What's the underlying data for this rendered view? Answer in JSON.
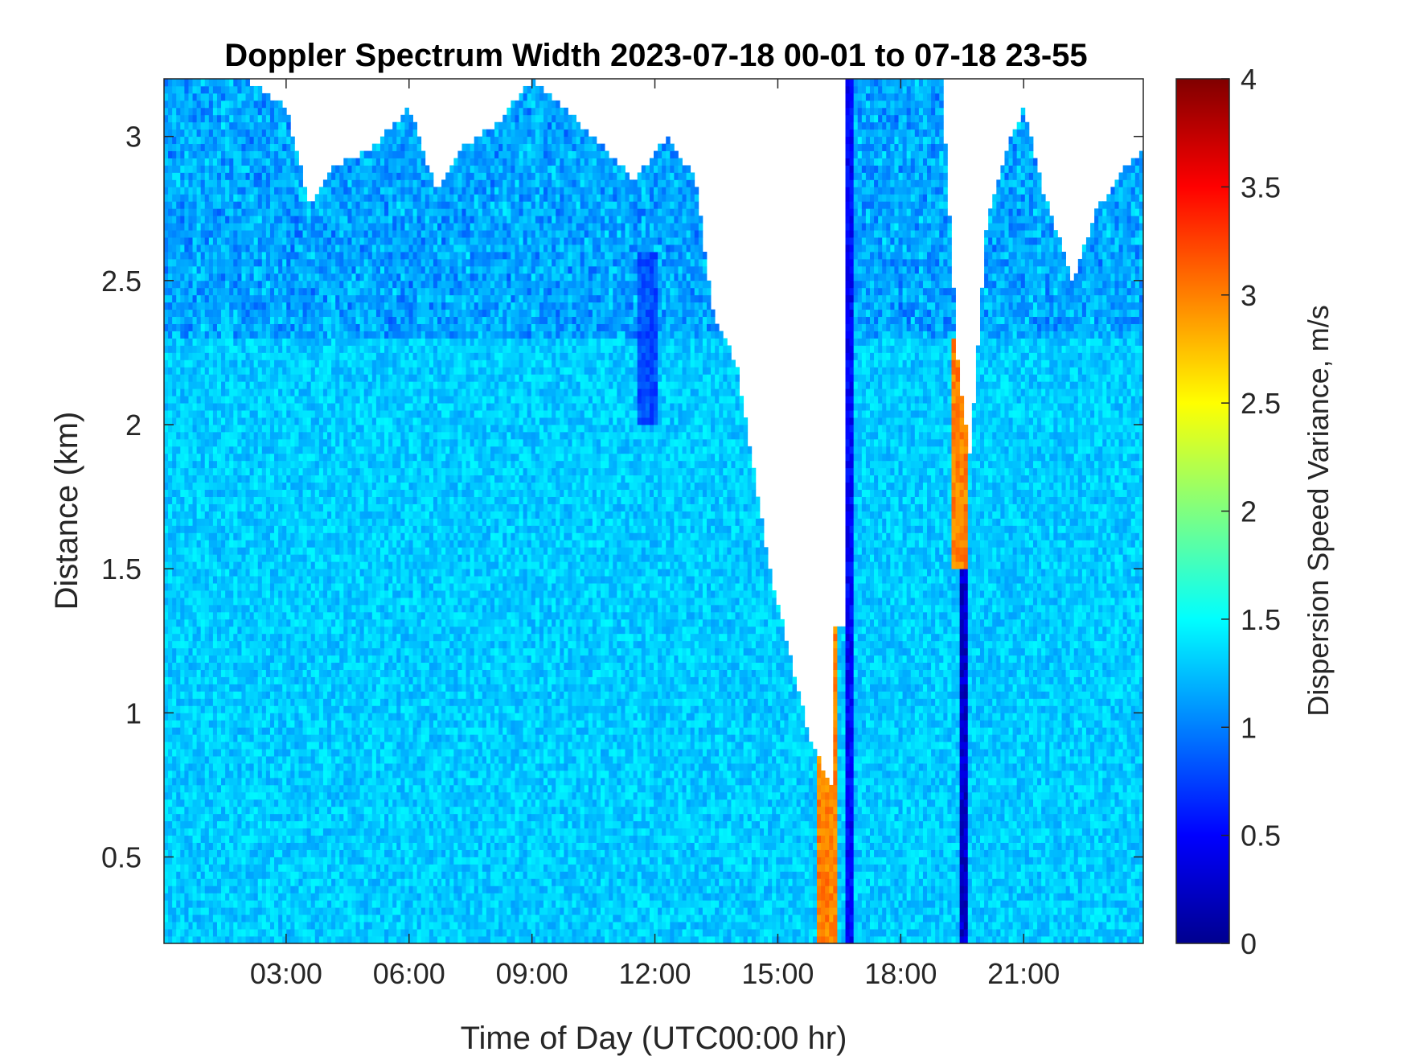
{
  "chart_data": {
    "type": "heatmap",
    "title": "Doppler Spectrum Width 2023-07-18 00-01 to 07-18 23-55",
    "xlabel": "Time of Day (UTC00:00 hr)",
    "ylabel": "Distance (km)",
    "colorbar_label": "Dispersion Speed Variance, m/s",
    "colormap": "jet",
    "xlim_hours": [
      0.02,
      23.92
    ],
    "ylim_km": [
      0.2,
      3.2
    ],
    "clim": [
      0,
      4
    ],
    "x_ticks": [
      {
        "hour": 3,
        "label": "03:00"
      },
      {
        "hour": 6,
        "label": "06:00"
      },
      {
        "hour": 9,
        "label": "09:00"
      },
      {
        "hour": 12,
        "label": "12:00"
      },
      {
        "hour": 15,
        "label": "15:00"
      },
      {
        "hour": 18,
        "label": "18:00"
      },
      {
        "hour": 21,
        "label": "21:00"
      }
    ],
    "y_ticks": [
      {
        "value": 0.5,
        "label": "0.5"
      },
      {
        "value": 1,
        "label": "1"
      },
      {
        "value": 1.5,
        "label": "1.5"
      },
      {
        "value": 2,
        "label": "2"
      },
      {
        "value": 2.5,
        "label": "2.5"
      },
      {
        "value": 3,
        "label": "3"
      }
    ],
    "colorbar_ticks": [
      {
        "value": 0,
        "label": "0"
      },
      {
        "value": 0.5,
        "label": "0.5"
      },
      {
        "value": 1,
        "label": "1"
      },
      {
        "value": 1.5,
        "label": "1.5"
      },
      {
        "value": 2,
        "label": "2"
      },
      {
        "value": 2.5,
        "label": "2.5"
      },
      {
        "value": 3,
        "label": "3"
      },
      {
        "value": 3.5,
        "label": "3.5"
      },
      {
        "value": 4,
        "label": "4"
      }
    ],
    "background_value": 1.3,
    "valid_data_top_km_by_hour": [
      {
        "hour": 0.0,
        "top": 3.2
      },
      {
        "hour": 1.0,
        "top": 3.2
      },
      {
        "hour": 2.0,
        "top": 3.2
      },
      {
        "hour": 3.0,
        "top": 3.1
      },
      {
        "hour": 3.6,
        "top": 2.75
      },
      {
        "hour": 4.2,
        "top": 2.9
      },
      {
        "hour": 5.0,
        "top": 2.95
      },
      {
        "hour": 6.0,
        "top": 3.1
      },
      {
        "hour": 6.7,
        "top": 2.8
      },
      {
        "hour": 7.2,
        "top": 2.95
      },
      {
        "hour": 8.2,
        "top": 3.05
      },
      {
        "hour": 9.0,
        "top": 3.2
      },
      {
        "hour": 10.5,
        "top": 3.0
      },
      {
        "hour": 11.5,
        "top": 2.85
      },
      {
        "hour": 12.3,
        "top": 3.0
      },
      {
        "hour": 13.0,
        "top": 2.85
      },
      {
        "hour": 13.4,
        "top": 2.4
      },
      {
        "hour": 14.0,
        "top": 2.2
      },
      {
        "hour": 14.8,
        "top": 1.5
      },
      {
        "hour": 15.3,
        "top": 1.2
      },
      {
        "hour": 15.8,
        "top": 0.9
      },
      {
        "hour": 16.3,
        "top": 0.75
      },
      {
        "hour": 16.7,
        "top": 3.2
      },
      {
        "hour": 18.0,
        "top": 3.2
      },
      {
        "hour": 19.0,
        "top": 3.2
      },
      {
        "hour": 19.4,
        "top": 2.2
      },
      {
        "hour": 19.7,
        "top": 1.9
      },
      {
        "hour": 20.1,
        "top": 2.7
      },
      {
        "hour": 20.7,
        "top": 3.0
      },
      {
        "hour": 21.0,
        "top": 3.1
      },
      {
        "hour": 21.5,
        "top": 2.8
      },
      {
        "hour": 22.2,
        "top": 2.5
      },
      {
        "hour": 22.8,
        "top": 2.75
      },
      {
        "hour": 23.5,
        "top": 2.9
      },
      {
        "hour": 23.92,
        "top": 2.95
      }
    ],
    "features": [
      {
        "hour_start": 16.0,
        "hour_end": 16.5,
        "km_start": 0.2,
        "km_end": 1.3,
        "value": 3.0,
        "description": "high spectrum width band"
      },
      {
        "hour_start": 19.2,
        "hour_end": 19.6,
        "km_start": 1.5,
        "km_end": 2.3,
        "value": 3.0,
        "description": "high spectrum width band"
      },
      {
        "hour_start": 19.45,
        "hour_end": 19.6,
        "km_start": 0.2,
        "km_end": 2.0,
        "value": 0.3,
        "description": "low spectrum width streak"
      },
      {
        "hour_start": 16.7,
        "hour_end": 16.85,
        "km_start": 0.2,
        "km_end": 3.2,
        "value": 0.5,
        "description": "low spectrum width streak"
      },
      {
        "hour_start": 11.6,
        "hour_end": 12.1,
        "km_start": 2.0,
        "km_end": 2.6,
        "value": 0.8,
        "description": "low spectrum width patch"
      },
      {
        "hour_start": 16.0,
        "hour_end": 16.8,
        "km_start": 1.3,
        "km_end": 3.2,
        "value": null,
        "description": "no data"
      }
    ]
  }
}
